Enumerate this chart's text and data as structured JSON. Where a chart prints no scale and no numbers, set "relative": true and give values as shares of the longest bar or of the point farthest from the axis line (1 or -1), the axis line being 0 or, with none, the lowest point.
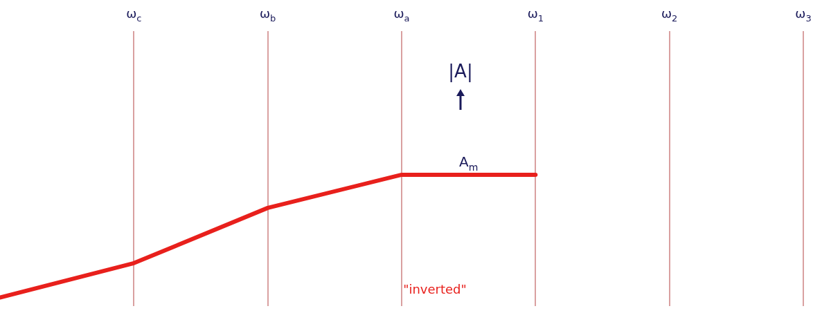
{
  "chart_data": {
    "type": "line",
    "relative": true,
    "categories": [
      null,
      "ω$_{c}$",
      "ω$_{b}$",
      "ω$_{a}$",
      "ω$_{1}$",
      "ω$_{2}$",
      "ω$_{3}$"
    ],
    "series": [
      {
        "color": "#e8201c",
        "values": [
          0,
          0.28,
          0.73,
          1,
          1,
          null,
          null
        ]
      }
    ],
    "grid": "x",
    "marker": "none",
    "line_style": "solid",
    "legend": false,
    "annotations": [
      "|A|",
      {
        "text": "A$_{m}$",
        "y": 1
      },
      "\"inverted\""
    ]
  }
}
